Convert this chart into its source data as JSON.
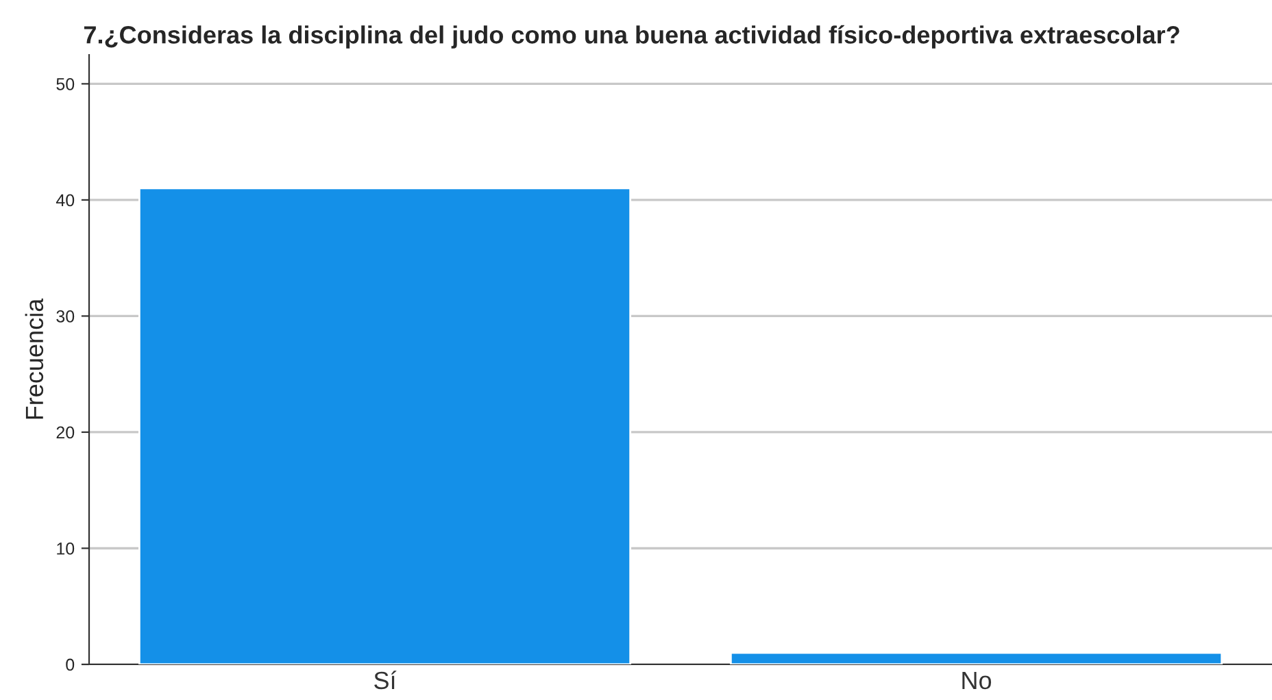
{
  "chart_data": {
    "type": "bar",
    "title": "7.¿Consideras la disciplina del judo como una buena actividad físico-deportiva extraescolar?",
    "ylabel": "Frecuencia",
    "categories": [
      "Sí",
      "No"
    ],
    "values": [
      41,
      1
    ],
    "color": "#1490e8",
    "ylim": [
      0,
      52.5
    ],
    "yticks": [
      0,
      10,
      20,
      30,
      40,
      50
    ],
    "grid": "y"
  }
}
